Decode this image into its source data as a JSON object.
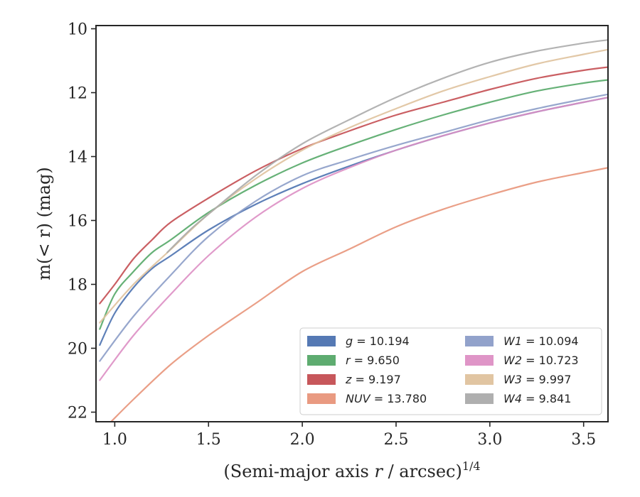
{
  "chart_data": {
    "type": "line",
    "title": "",
    "xlabel": "(Semi-major axis r / arcsec)",
    "xlabel_var": "r",
    "xlabel_sup": "1/4",
    "ylabel": "m(< r) (mag)",
    "xlim": [
      0.9,
      3.63
    ],
    "ylim": [
      22.3,
      9.9
    ],
    "y_inverted": true,
    "grid": false,
    "legend_position": "lower-right",
    "xticks": [
      "1.0",
      "1.5",
      "2.0",
      "2.5",
      "3.0",
      "3.5"
    ],
    "xtick_values": [
      1.0,
      1.5,
      2.0,
      2.5,
      3.0,
      3.5
    ],
    "yticks": [
      "10",
      "12",
      "14",
      "16",
      "18",
      "20",
      "22"
    ],
    "ytick_values": [
      10,
      12,
      14,
      16,
      18,
      20,
      22
    ],
    "series": [
      {
        "name": "g",
        "label": "= 10.194",
        "color": "#4c72b0",
        "x": [
          0.92,
          1.0,
          1.1,
          1.2,
          1.3,
          1.5,
          1.75,
          2.0,
          2.25,
          2.5,
          2.75,
          3.0,
          3.25,
          3.5,
          3.63
        ],
        "y": [
          19.9,
          18.9,
          18.1,
          17.5,
          17.1,
          16.3,
          15.5,
          14.85,
          14.3,
          13.8,
          13.35,
          12.95,
          12.6,
          12.3,
          12.15
        ]
      },
      {
        "name": "r",
        "label": "= 9.650",
        "color": "#55a868",
        "x": [
          0.92,
          1.0,
          1.1,
          1.2,
          1.3,
          1.5,
          1.75,
          2.0,
          2.25,
          2.5,
          2.75,
          3.0,
          3.25,
          3.5,
          3.63
        ],
        "y": [
          19.4,
          18.3,
          17.6,
          17.0,
          16.6,
          15.75,
          14.9,
          14.2,
          13.65,
          13.15,
          12.7,
          12.3,
          11.95,
          11.7,
          11.6
        ]
      },
      {
        "name": "z",
        "label": "= 9.197",
        "color": "#c44e52",
        "x": [
          0.92,
          1.0,
          1.1,
          1.2,
          1.3,
          1.5,
          1.75,
          2.0,
          2.25,
          2.5,
          2.75,
          3.0,
          3.25,
          3.5,
          3.63
        ],
        "y": [
          18.6,
          18.0,
          17.2,
          16.6,
          16.05,
          15.3,
          14.45,
          13.75,
          13.2,
          12.7,
          12.3,
          11.9,
          11.55,
          11.3,
          11.2
        ]
      },
      {
        "name": "NUV",
        "label": "= 13.780",
        "color": "#e8957a",
        "x": [
          0.98,
          1.1,
          1.3,
          1.5,
          1.75,
          2.0,
          2.25,
          2.5,
          2.75,
          3.0,
          3.25,
          3.5,
          3.63
        ],
        "y": [
          22.3,
          21.6,
          20.5,
          19.6,
          18.6,
          17.6,
          16.9,
          16.2,
          15.65,
          15.2,
          14.8,
          14.5,
          14.35
        ]
      },
      {
        "name": "W1",
        "label": "= 10.094",
        "color": "#8c9dc8",
        "x": [
          0.92,
          1.1,
          1.3,
          1.5,
          1.75,
          2.0,
          2.25,
          2.5,
          2.75,
          3.0,
          3.25,
          3.5,
          3.63
        ],
        "y": [
          20.4,
          19.0,
          17.7,
          16.5,
          15.4,
          14.6,
          14.1,
          13.65,
          13.25,
          12.85,
          12.5,
          12.2,
          12.05
        ]
      },
      {
        "name": "W2",
        "label": "= 10.723",
        "color": "#dd8fc4",
        "x": [
          0.92,
          1.1,
          1.3,
          1.5,
          1.75,
          2.0,
          2.25,
          2.5,
          2.75,
          3.0,
          3.25,
          3.5,
          3.63
        ],
        "y": [
          21.0,
          19.6,
          18.3,
          17.1,
          15.9,
          15.0,
          14.35,
          13.8,
          13.35,
          12.95,
          12.6,
          12.3,
          12.15
        ]
      },
      {
        "name": "W3",
        "label": "= 9.997",
        "color": "#dfc29d",
        "x": [
          0.92,
          1.1,
          1.3,
          1.5,
          1.75,
          2.0,
          2.25,
          2.5,
          2.75,
          3.0,
          3.25,
          3.5,
          3.63
        ],
        "y": [
          19.2,
          18.0,
          16.9,
          15.8,
          14.7,
          13.8,
          13.1,
          12.5,
          11.95,
          11.5,
          11.1,
          10.8,
          10.65
        ]
      },
      {
        "name": "W4",
        "label": "= 9.841",
        "color": "#ababab",
        "x": [
          1.28,
          1.4,
          1.5,
          1.75,
          2.0,
          2.25,
          2.5,
          2.75,
          3.0,
          3.25,
          3.5,
          3.63
        ],
        "y": [
          17.0,
          16.3,
          15.8,
          14.6,
          13.6,
          12.85,
          12.15,
          11.55,
          11.05,
          10.7,
          10.45,
          10.35
        ]
      }
    ]
  }
}
